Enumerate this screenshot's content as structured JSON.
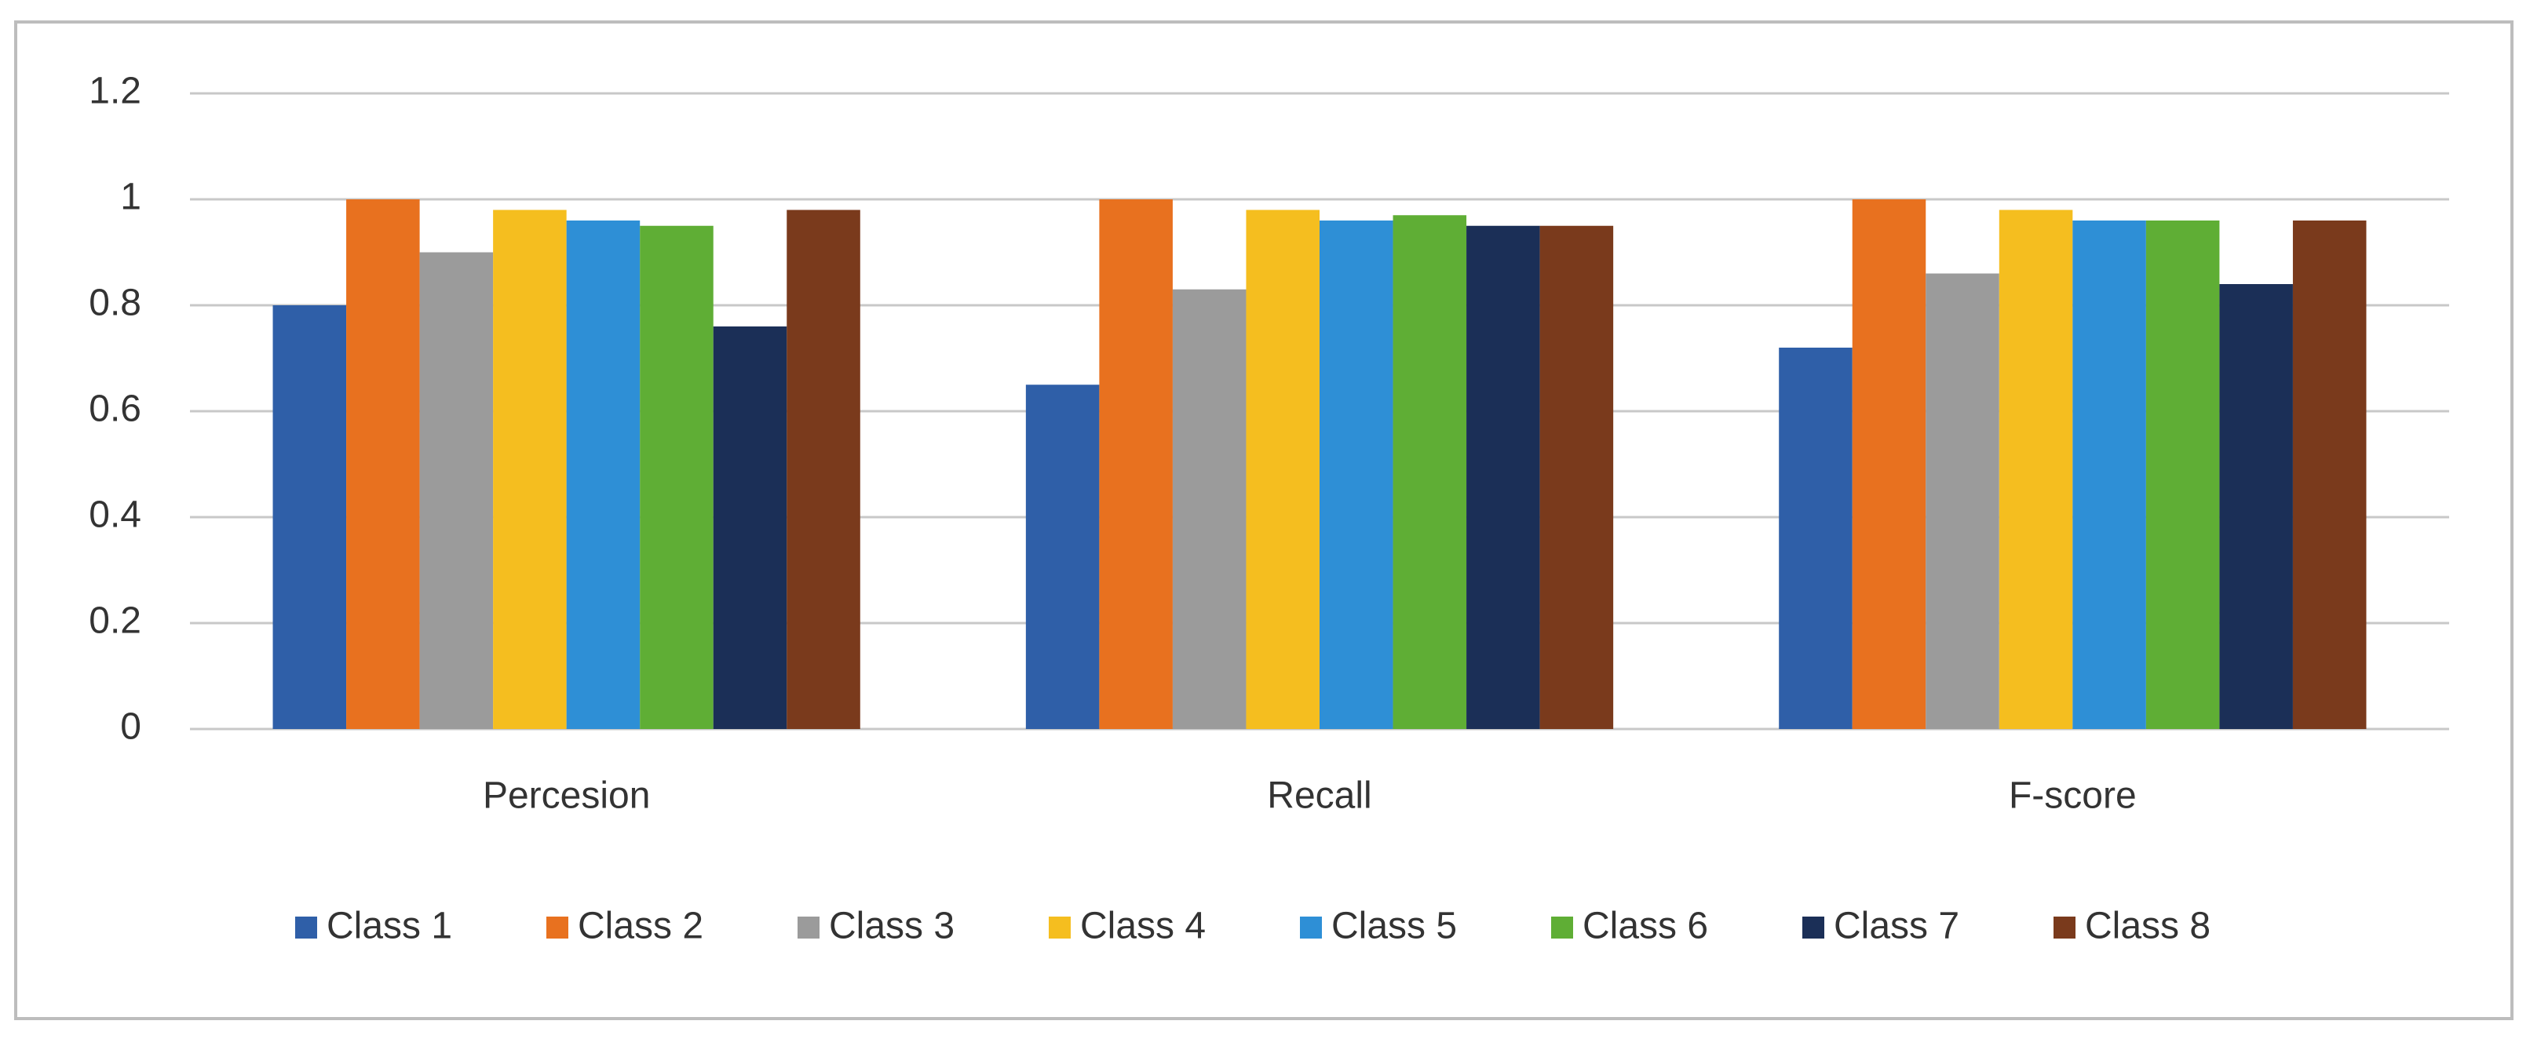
{
  "chart_data": {
    "type": "bar",
    "categories": [
      "Percesion",
      "Recall",
      "F-score"
    ],
    "series": [
      {
        "name": "Class 1",
        "color": "#2f5fa8",
        "values": [
          0.8,
          0.65,
          0.72
        ]
      },
      {
        "name": "Class 2",
        "color": "#e8711f",
        "values": [
          1.0,
          1.0,
          1.0
        ]
      },
      {
        "name": "Class 3",
        "color": "#9b9b9b",
        "values": [
          0.9,
          0.83,
          0.86
        ]
      },
      {
        "name": "Class 4",
        "color": "#f5be1f",
        "values": [
          0.98,
          0.98,
          0.98
        ]
      },
      {
        "name": "Class 5",
        "color": "#2e8fd6",
        "values": [
          0.96,
          0.96,
          0.96
        ]
      },
      {
        "name": "Class 6",
        "color": "#5fae35",
        "values": [
          0.95,
          0.97,
          0.96
        ]
      },
      {
        "name": "Class 7",
        "color": "#1b2f57",
        "values": [
          0.76,
          0.95,
          0.84
        ]
      },
      {
        "name": "Class 8",
        "color": "#7a3a1c",
        "values": [
          0.98,
          0.95,
          0.96
        ]
      }
    ],
    "ylim": [
      0,
      1.2
    ],
    "yticks": [
      0,
      0.2,
      0.4,
      0.6,
      0.8,
      1,
      1.2
    ],
    "grid": true
  }
}
